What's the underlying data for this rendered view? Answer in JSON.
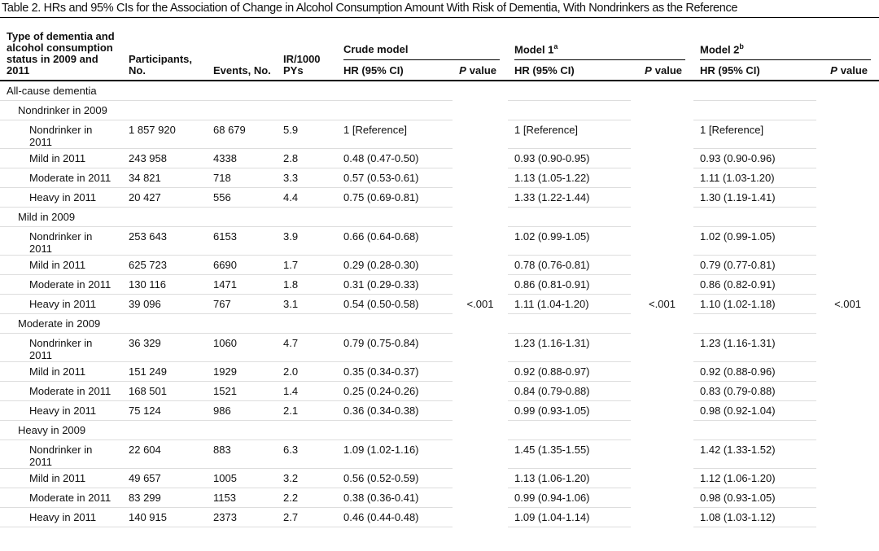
{
  "title": "Table 2. HRs and 95% CIs for the Association of Change in Alcohol Consumption Amount With Risk of Dementia, With Nondrinkers as the Reference",
  "header": {
    "type": "Type of dementia and alcohol consumption status in 2009 and 2011",
    "participants": "Participants, No.",
    "events": "Events, No.",
    "ir": "IR/1000 PYs",
    "models": [
      {
        "name": "Crude model",
        "hr": "HR (95% CI)",
        "p_symbol": "P",
        "p_label": "value"
      },
      {
        "name": "Model 1",
        "note": "a",
        "hr": "HR (95% CI)",
        "p_symbol": "P",
        "p_label": "value"
      },
      {
        "name": "Model 2",
        "note": "b",
        "hr": "HR (95% CI)",
        "p_symbol": "P",
        "p_label": "value"
      }
    ]
  },
  "section": "All-cause dementia",
  "p_values": [
    "<.001",
    "<.001",
    "<.001"
  ],
  "groups": [
    {
      "label": "Nondrinker in 2009",
      "rows": [
        {
          "label": "Nondrinker in 2011",
          "participants": "1 857 920",
          "events": "68 679",
          "ir": "5.9",
          "hr": [
            "1 [Reference]",
            "1 [Reference]",
            "1 [Reference]"
          ]
        },
        {
          "label": "Mild in 2011",
          "participants": "243 958",
          "events": "4338",
          "ir": "2.8",
          "hr": [
            "0.48 (0.47-0.50)",
            "0.93 (0.90-0.95)",
            "0.93 (0.90-0.96)"
          ]
        },
        {
          "label": "Moderate in 2011",
          "participants": "34 821",
          "events": "718",
          "ir": "3.3",
          "hr": [
            "0.57 (0.53-0.61)",
            "1.13 (1.05-1.22)",
            "1.11 (1.03-1.20)"
          ]
        },
        {
          "label": "Heavy in 2011",
          "participants": "20 427",
          "events": "556",
          "ir": "4.4",
          "hr": [
            "0.75 (0.69-0.81)",
            "1.33 (1.22-1.44)",
            "1.30 (1.19-1.41)"
          ]
        }
      ]
    },
    {
      "label": "Mild in 2009",
      "rows": [
        {
          "label": "Nondrinker in 2011",
          "participants": "253 643",
          "events": "6153",
          "ir": "3.9",
          "hr": [
            "0.66 (0.64-0.68)",
            "1.02 (0.99-1.05)",
            "1.02 (0.99-1.05)"
          ]
        },
        {
          "label": "Mild in 2011",
          "participants": "625 723",
          "events": "6690",
          "ir": "1.7",
          "hr": [
            "0.29 (0.28-0.30)",
            "0.78 (0.76-0.81)",
            "0.79 (0.77-0.81)"
          ]
        },
        {
          "label": "Moderate in 2011",
          "participants": "130 116",
          "events": "1471",
          "ir": "1.8",
          "hr": [
            "0.31 (0.29-0.33)",
            "0.86 (0.81-0.91)",
            "0.86 (0.82-0.91)"
          ]
        },
        {
          "label": "Heavy in 2011",
          "participants": "39 096",
          "events": "767",
          "ir": "3.1",
          "hr": [
            "0.54 (0.50-0.58)",
            "1.11 (1.04-1.20)",
            "1.10 (1.02-1.18)"
          ]
        }
      ]
    },
    {
      "label": "Moderate in 2009",
      "rows": [
        {
          "label": "Nondrinker in 2011",
          "participants": "36 329",
          "events": "1060",
          "ir": "4.7",
          "hr": [
            "0.79 (0.75-0.84)",
            "1.23 (1.16-1.31)",
            "1.23 (1.16-1.31)"
          ]
        },
        {
          "label": "Mild in 2011",
          "participants": "151 249",
          "events": "1929",
          "ir": "2.0",
          "hr": [
            "0.35 (0.34-0.37)",
            "0.92 (0.88-0.97)",
            "0.92 (0.88-0.96)"
          ]
        },
        {
          "label": "Moderate in 2011",
          "participants": "168 501",
          "events": "1521",
          "ir": "1.4",
          "hr": [
            "0.25 (0.24-0.26)",
            "0.84 (0.79-0.88)",
            "0.83 (0.79-0.88)"
          ]
        },
        {
          "label": "Heavy in 2011",
          "participants": "75 124",
          "events": "986",
          "ir": "2.1",
          "hr": [
            "0.36 (0.34-0.38)",
            "0.99 (0.93-1.05)",
            "0.98 (0.92-1.04)"
          ]
        }
      ]
    },
    {
      "label": "Heavy in 2009",
      "rows": [
        {
          "label": "Nondrinker in 2011",
          "participants": "22 604",
          "events": "883",
          "ir": "6.3",
          "hr": [
            "1.09 (1.02-1.16)",
            "1.45 (1.35-1.55)",
            "1.42 (1.33-1.52)"
          ]
        },
        {
          "label": "Mild in 2011",
          "participants": "49 657",
          "events": "1005",
          "ir": "3.2",
          "hr": [
            "0.56 (0.52-0.59)",
            "1.13 (1.06-1.20)",
            "1.12 (1.06-1.20)"
          ]
        },
        {
          "label": "Moderate in 2011",
          "participants": "83 299",
          "events": "1153",
          "ir": "2.2",
          "hr": [
            "0.38 (0.36-0.41)",
            "0.99 (0.94-1.06)",
            "0.98 (0.93-1.05)"
          ]
        },
        {
          "label": "Heavy in 2011",
          "participants": "140 915",
          "events": "2373",
          "ir": "2.7",
          "hr": [
            "0.46 (0.44-0.48)",
            "1.09 (1.04-1.14)",
            "1.08 (1.03-1.12)"
          ]
        }
      ]
    }
  ]
}
